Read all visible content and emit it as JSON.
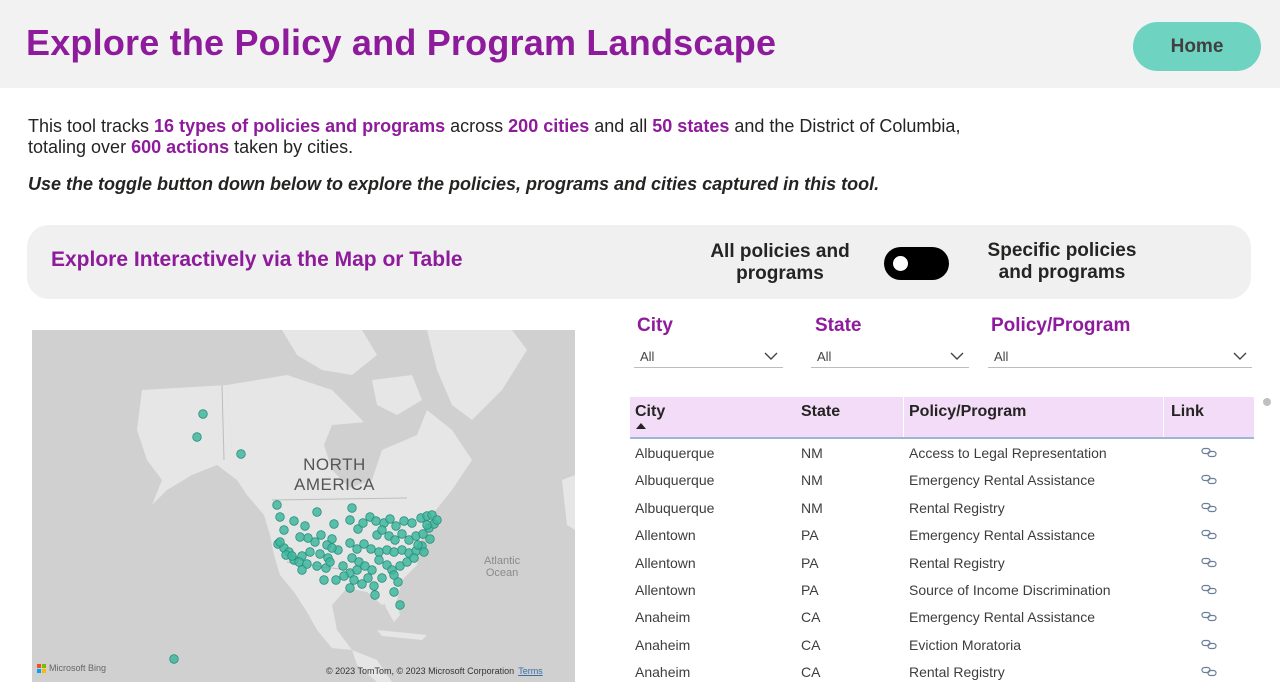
{
  "header": {
    "title": "Explore the Policy and Program Landscape",
    "home_label": "Home"
  },
  "intro": {
    "t1": "This tool tracks ",
    "b1": "16 types of policies and programs",
    "t2": " across ",
    "b2": "200 cities",
    "t3": " and all ",
    "b3": "50 states",
    "t4": " and the District of Columbia,",
    "t5": "totaling over ",
    "b4": "600 actions",
    "t6": " taken by cities.",
    "instruction": "Use the toggle button down below to explore the policies, programs and cities captured in this tool."
  },
  "explore": {
    "title": "Explore Interactively via the Map or Table",
    "toggle_left": "All policies and programs",
    "toggle_right": "Specific policies and programs"
  },
  "map": {
    "region_label_1": "NORTH",
    "region_label_2": "AMERICA",
    "ocean_label_1": "Atlantic",
    "ocean_label_2": "Ocean",
    "bing": "Microsoft Bing",
    "copyright": "© 2023 TomTom, © 2023 Microsoft Corporation",
    "terms": "Terms",
    "marker_color": "#3fb79f",
    "land_color": "#e6e6e6",
    "water_color": "#d0d0d0"
  },
  "filters": [
    {
      "label": "City",
      "value": "All"
    },
    {
      "label": "State",
      "value": "All"
    },
    {
      "label": "Policy/Program",
      "value": "All"
    }
  ],
  "table": {
    "columns": [
      "City",
      "State",
      "Policy/Program",
      "Link"
    ],
    "rows": [
      {
        "city": "Albuquerque",
        "state": "NM",
        "policy": "Access to Legal Representation"
      },
      {
        "city": "Albuquerque",
        "state": "NM",
        "policy": "Emergency Rental Assistance"
      },
      {
        "city": "Albuquerque",
        "state": "NM",
        "policy": "Rental Registry"
      },
      {
        "city": "Allentown",
        "state": "PA",
        "policy": "Emergency Rental Assistance"
      },
      {
        "city": "Allentown",
        "state": "PA",
        "policy": "Rental Registry"
      },
      {
        "city": "Allentown",
        "state": "PA",
        "policy": "Source of Income Discrimination"
      },
      {
        "city": "Anaheim",
        "state": "CA",
        "policy": "Emergency Rental Assistance"
      },
      {
        "city": "Anaheim",
        "state": "CA",
        "policy": "Eviction Moratoria"
      },
      {
        "city": "Anaheim",
        "state": "CA",
        "policy": "Rental Registry"
      }
    ]
  },
  "colors": {
    "brand_purple": "#8e1b9c",
    "home_button": "#6fd3c1",
    "table_header": "#f3dcf7"
  }
}
